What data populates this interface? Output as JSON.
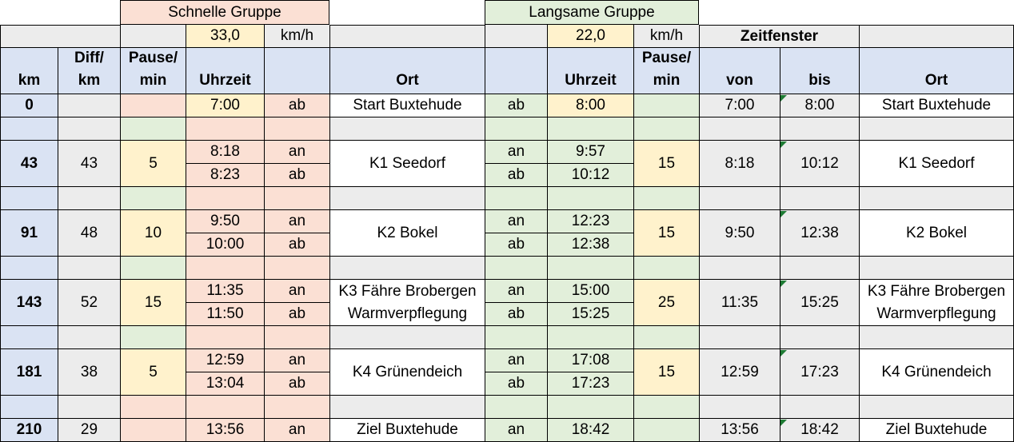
{
  "groups": {
    "fast": {
      "title": "Schnelle Gruppe",
      "speed": "33,0",
      "unit": "km/h"
    },
    "slow": {
      "title": "Langsame Gruppe",
      "speed": "22,0",
      "unit": "km/h"
    },
    "window_title": "Zeitfenster"
  },
  "headers": {
    "km": "km",
    "diff_1": "Diff/",
    "diff_2": "km",
    "pause_1": "Pause/",
    "pause_2": "min",
    "uhrzeit": "Uhrzeit",
    "ort": "Ort",
    "von": "von",
    "bis": "bis"
  },
  "start": {
    "km": "0",
    "fast_time": "7:00",
    "fast_dir": "ab",
    "ort": "Start Buxtehude",
    "slow_dir": "ab",
    "slow_time": "8:00",
    "von": "7:00",
    "bis": "8:00",
    "ort2": "Start Buxtehude"
  },
  "stops": [
    {
      "km": "43",
      "diff": "43",
      "pause_fast": "5",
      "fast_arr": "8:18",
      "fast_dep": "8:23",
      "an": "an",
      "ab": "ab",
      "ort_1": "K1 Seedorf",
      "ort_2": "",
      "slow_arr": "9:57",
      "slow_dep": "10:12",
      "pause_slow": "15",
      "von": "8:18",
      "bis": "10:12",
      "ort2_1": "K1 Seedorf",
      "ort2_2": ""
    },
    {
      "km": "91",
      "diff": "48",
      "pause_fast": "10",
      "fast_arr": "9:50",
      "fast_dep": "10:00",
      "an": "an",
      "ab": "ab",
      "ort_1": "K2 Bokel",
      "ort_2": "",
      "slow_arr": "12:23",
      "slow_dep": "12:38",
      "pause_slow": "15",
      "von": "9:50",
      "bis": "12:38",
      "ort2_1": "K2 Bokel",
      "ort2_2": ""
    },
    {
      "km": "143",
      "diff": "52",
      "pause_fast": "15",
      "fast_arr": "11:35",
      "fast_dep": "11:50",
      "an": "an",
      "ab": "ab",
      "ort_1": "K3 Fähre Brobergen",
      "ort_2": "Warmverpflegung",
      "slow_arr": "15:00",
      "slow_dep": "15:25",
      "pause_slow": "25",
      "von": "11:35",
      "bis": "15:25",
      "ort2_1": "K3 Fähre Brobergen",
      "ort2_2": "Warmverpflegung"
    },
    {
      "km": "181",
      "diff": "38",
      "pause_fast": "5",
      "fast_arr": "12:59",
      "fast_dep": "13:04",
      "an": "an",
      "ab": "ab",
      "ort_1": "K4 Grünendeich",
      "ort_2": "",
      "slow_arr": "17:08",
      "slow_dep": "17:23",
      "pause_slow": "15",
      "von": "12:59",
      "bis": "17:23",
      "ort2_1": "K4 Grünendeich",
      "ort2_2": ""
    }
  ],
  "finish": {
    "km": "210",
    "diff": "29",
    "fast_time": "13:56",
    "fast_dir": "an",
    "ort": "Ziel Buxtehude",
    "slow_dir": "an",
    "slow_time": "18:42",
    "von": "13:56",
    "bis": "18:42",
    "ort2": "Ziel Buxtehude"
  }
}
